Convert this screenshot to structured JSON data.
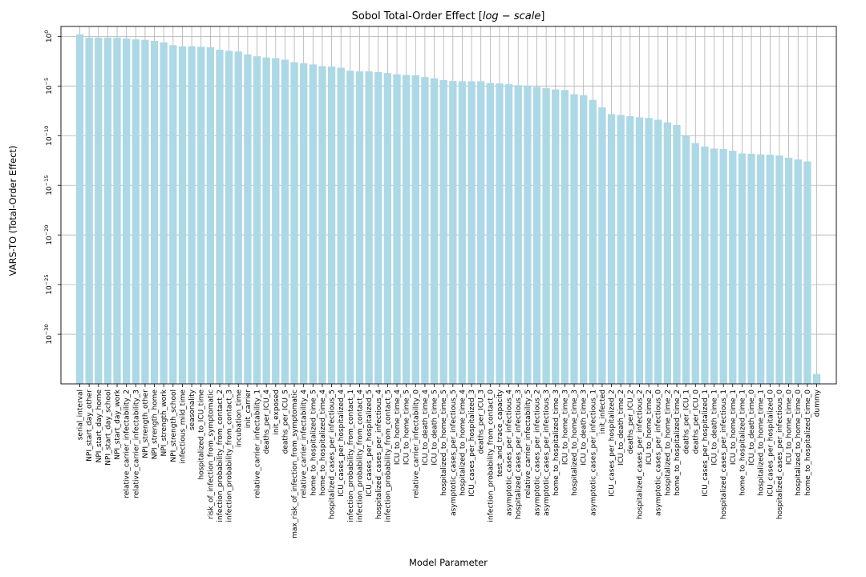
{
  "chart_data": {
    "type": "bar",
    "title": "Sobol Total-Order Effect [log − scale]",
    "title_text": "Sobol Total-Order Effect [",
    "title_math": "log − scale",
    "title_close": "]",
    "xlabel": "Model Parameter",
    "ylabel": "VARS-TO (Total-Order Effect)",
    "yscale": "log",
    "ylim": [
      1e-35,
      10.0
    ],
    "yticks": [
      1e-30,
      1e-25,
      1e-20,
      1e-15,
      1e-10,
      1e-05,
      1
    ],
    "ytick_labels": [
      {
        "base": "10",
        "exp": "−30"
      },
      {
        "base": "10",
        "exp": "−25"
      },
      {
        "base": "10",
        "exp": "−20"
      },
      {
        "base": "10",
        "exp": "−15"
      },
      {
        "base": "10",
        "exp": "−10"
      },
      {
        "base": "10",
        "exp": "−5"
      },
      {
        "base": "10",
        "exp": "0"
      }
    ],
    "grid": true,
    "bar_color": "#add8e6",
    "categories": [
      "serial_interval",
      "NPI_start_day_other",
      "NPI_start_day_home",
      "NPI_start_day_school",
      "NPI_start_day_work",
      "relative_carrier_infectability_2",
      "relative_carrier_infectability_3",
      "NPI_strength_other",
      "NPI_strength_home",
      "NPI_strength_work",
      "NPI_strength_school",
      "infectious_mild_time",
      "seasonality",
      "hospitalized_to_ICU_time",
      "risk_of_infection_from_symptomatic",
      "infection_probability_from_contact_2",
      "infection_probability_from_contact_3",
      "incubation_time",
      "init_carrier",
      "relative_carrier_infectability_1",
      "deaths_per_ICU_4",
      "init_exposed",
      "deaths_per_ICU_5",
      "max_risk_of_infection_from_symptomatic",
      "relative_carrier_infectability_4",
      "home_to_hospitalized_time_5",
      "home_to_hospitalized_time_4",
      "hospitalized_cases_per_infectious_5",
      "ICU_cases_per_hospitalized_4",
      "infection_probability_from_contact_1",
      "infection_probability_from_contact_4",
      "ICU_cases_per_hospitalized_5",
      "hospitalized_cases_per_infectious_4",
      "infection_probability_from_contact_5",
      "ICU_to_home_time_4",
      "ICU_to_home_time_5",
      "relative_carrier_infectability_0",
      "ICU_to_death_time_4",
      "ICU_to_death_time_5",
      "hospitalized_to_home_time_5",
      "asymptotic_cases_per_infectious_5",
      "hospitalized_to_home_time_4",
      "ICU_cases_per_hospitalized_3",
      "deaths_per_ICU_3",
      "infection_probability_from_contact_0",
      "test_and_trace_capacity",
      "asymptotic_cases_per_infectious_4",
      "hospitalized_cases_per_infectious_3",
      "relative_carrier_infectability_5",
      "asymptotic_cases_per_infectious_2",
      "asymptotic_cases_per_infectious_3",
      "home_to_hospitalized_time_3",
      "ICU_to_home_time_3",
      "hospitalized_to_home_time_3",
      "ICU_to_death_time_3",
      "asymptotic_cases_per_infectious_1",
      "init_infected",
      "ICU_cases_per_hospitalized_2",
      "ICU_to_death_time_2",
      "deaths_per_ICU_2",
      "hospitalized_cases_per_infectious_2",
      "ICU_to_home_time_2",
      "asymptotic_cases_per_infectious_0",
      "hospitalized_to_home_time_2",
      "home_to_hospitalized_time_2",
      "deaths_per_ICU_1",
      "deaths_per_ICU_0",
      "ICU_cases_per_hospitalized_1",
      "ICU_to_death_time_1",
      "hospitalized_cases_per_infectious_1",
      "ICU_to_home_time_1",
      "home_to_hospitalized_time_1",
      "ICU_to_death_time_0",
      "hospitalized_to_home_time_1",
      "ICU_cases_per_hospitalized_0",
      "hospitalized_cases_per_infectious_0",
      "ICU_to_home_time_0",
      "hospitalized_to_home_time_0",
      "home_to_hospitalized_time_0",
      "dummy"
    ],
    "values": [
      1.6,
      0.75,
      0.75,
      0.75,
      0.75,
      0.6,
      0.5,
      0.45,
      0.35,
      0.25,
      0.13,
      0.1,
      0.1,
      0.09,
      0.08,
      0.045,
      0.035,
      0.03,
      0.015,
      0.01,
      0.0075,
      0.0065,
      0.0045,
      0.0025,
      0.002,
      0.0015,
      0.001,
      0.0009,
      0.0007,
      0.00035,
      0.0003,
      0.0003,
      0.00025,
      0.0002,
      0.00015,
      0.00013,
      0.00012,
      8e-05,
      6e-05,
      4e-05,
      3.3e-05,
      3e-05,
      3e-05,
      3e-05,
      2e-05,
      1.8e-05,
      1.5e-05,
      1.2e-05,
      1.1e-05,
      8e-06,
      6e-06,
      4.5e-06,
      4e-06,
      1.5e-06,
      1.2e-06,
      4e-07,
      7e-08,
      1.5e-08,
      1.2e-08,
      9e-09,
      7e-09,
      6e-09,
      4e-09,
      2.2e-09,
      1.2e-09,
      1e-10,
      1.8e-11,
      8e-12,
      5e-12,
      4.5e-12,
      3e-12,
      1.6e-12,
      1.5e-12,
      1.3e-12,
      1.2e-12,
      1e-12,
      6e-13,
      4e-13,
      2.5e-13,
      1e-34
    ]
  }
}
